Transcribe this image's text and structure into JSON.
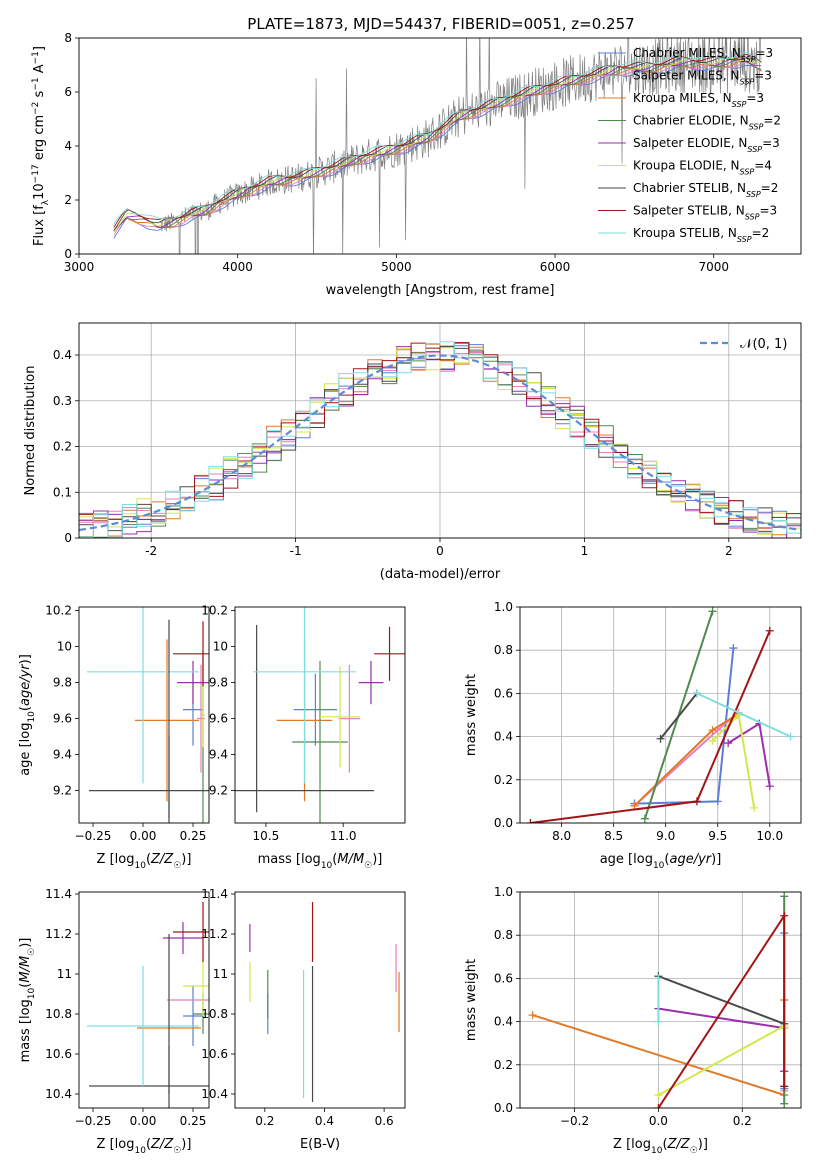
{
  "figure_title": "PLATE=1873, MJD=54437, FIBERID=0051, z=0.257",
  "models": [
    {
      "name": "Chabrier MILES",
      "nssp": "3",
      "color": "#5b7fd6"
    },
    {
      "name": "Salpeter MILES",
      "nssp": "3",
      "color": "#e87fbf"
    },
    {
      "name": "Kroupa MILES",
      "nssp": "3",
      "color": "#e07a28"
    },
    {
      "name": "Chabrier ELODIE",
      "nssp": "2",
      "color": "#4f8a4f"
    },
    {
      "name": "Salpeter ELODIE",
      "nssp": "3",
      "color": "#9b2fae"
    },
    {
      "name": "Kroupa ELODIE",
      "nssp": "4",
      "color": "#d4e64c"
    },
    {
      "name": "Chabrier STELIB",
      "nssp": "2",
      "color": "#4a4a4a"
    },
    {
      "name": "Salpeter STELIB",
      "nssp": "3",
      "color": "#a31515"
    },
    {
      "name": "Kroupa STELIB",
      "nssp": "2",
      "color": "#7fdde0"
    }
  ],
  "data_color": "#808080",
  "chart_data": [
    {
      "id": "spectrum",
      "type": "line",
      "xlabel": "wavelength [Angstrom, rest frame]",
      "ylabel": "Flux [f_λ10^-17 erg cm^-2 s^-1 A^-1]",
      "xlim": [
        3000,
        7550
      ],
      "ylim": [
        0,
        8
      ],
      "xticks": [
        3000,
        4000,
        5000,
        6000,
        7000
      ],
      "yticks": [
        0,
        2,
        4,
        6,
        8
      ],
      "legend_position": "right",
      "continuum": [
        [
          3220,
          0.85
        ],
        [
          3300,
          1.45
        ],
        [
          3400,
          1.3
        ],
        [
          3500,
          1.05
        ],
        [
          3600,
          1.2
        ],
        [
          3700,
          1.45
        ],
        [
          3800,
          1.6
        ],
        [
          3900,
          1.95
        ],
        [
          4000,
          2.2
        ],
        [
          4200,
          2.65
        ],
        [
          4400,
          2.85
        ],
        [
          4600,
          3.2
        ],
        [
          4800,
          3.6
        ],
        [
          5000,
          3.9
        ],
        [
          5200,
          4.3
        ],
        [
          5400,
          5.1
        ],
        [
          5600,
          5.5
        ],
        [
          5800,
          5.9
        ],
        [
          6000,
          6.25
        ],
        [
          6200,
          6.55
        ],
        [
          6400,
          6.85
        ],
        [
          6600,
          6.9
        ],
        [
          6800,
          7.1
        ],
        [
          7000,
          7.05
        ],
        [
          7200,
          7.2
        ],
        [
          7300,
          6.95
        ]
      ]
    },
    {
      "id": "residuals",
      "type": "step",
      "xlabel": "(data-model)/error",
      "ylabel": "Normed distribution",
      "xlim": [
        -2.5,
        2.5
      ],
      "ylim": [
        0,
        0.47
      ],
      "xticks": [
        -2,
        -1,
        0,
        1,
        2
      ],
      "yticks": [
        0,
        0.1,
        0.2,
        0.3,
        0.4
      ],
      "normal_label": "𝒩(0, 1)",
      "legend_position": "top-right"
    },
    {
      "id": "z_age",
      "type": "errorbar",
      "xlabel": "Z [log10(Z/Z☉)]",
      "ylabel": "age  [log10(age/yr)]",
      "xlim": [
        -0.32,
        0.33
      ],
      "ylim": [
        9.02,
        10.22
      ],
      "xticks": [
        -0.25,
        0.0,
        0.25
      ],
      "xticklabels": [
        "−0.25",
        "0.00",
        "0.25"
      ],
      "yticks": [
        9.2,
        9.4,
        9.6,
        9.8,
        10.0,
        10.2
      ],
      "points": [
        {
          "m": 0,
          "x": 0.25,
          "xe": 0.05,
          "y": 9.65,
          "ye": 0.2
        },
        {
          "m": 1,
          "x": 0.29,
          "xe": 0.02,
          "y": 9.6,
          "ye": 0.3
        },
        {
          "m": 2,
          "x": 0.12,
          "xe": 0.16,
          "y": 9.59,
          "ye": 0.45
        },
        {
          "m": 3,
          "x": 0.3,
          "xe": 0.0,
          "y": 9.48,
          "ye": 0.5
        },
        {
          "m": 4,
          "x": 0.25,
          "xe": 0.08,
          "y": 9.8,
          "ye": 0.12
        },
        {
          "m": 5,
          "x": 0.3,
          "xe": 0.01,
          "y": 9.62,
          "ye": 0.18
        },
        {
          "m": 6,
          "x": 0.13,
          "xe": 0.4,
          "y": 9.2,
          "ye": 0.3
        },
        {
          "m": 7,
          "x": 0.3,
          "xe": 0.15,
          "y": 9.96,
          "ye": 0.18
        },
        {
          "m": 8,
          "x": 0.0,
          "xe": 0.28,
          "y": 9.86,
          "ye": 0.62
        },
        {
          "m": 6,
          "x": 0.13,
          "xe": 0.0,
          "y": 9.6,
          "ye": 0.55
        }
      ]
    },
    {
      "id": "mass_age",
      "type": "errorbar",
      "xlabel": "mass [log10(M/M☉)]",
      "ylabel": "",
      "xlim": [
        10.3,
        11.4
      ],
      "ylim": [
        9.02,
        10.22
      ],
      "xticks": [
        10.5,
        11.0
      ],
      "xticklabels": [
        "10.5",
        "11.0"
      ],
      "yticks": [
        9.2,
        9.4,
        9.6,
        9.8,
        10.0,
        10.2
      ],
      "points": [
        {
          "m": 0,
          "x": 10.82,
          "xe": 0.14,
          "y": 9.65,
          "ye": 0.2
        },
        {
          "m": 1,
          "x": 11.04,
          "xe": 0.07,
          "y": 9.6,
          "ye": 0.3
        },
        {
          "m": 2,
          "x": 10.75,
          "xe": 0.18,
          "y": 9.59,
          "ye": 0.45
        },
        {
          "m": 3,
          "x": 10.85,
          "xe": 0.18,
          "y": 9.47,
          "ye": 0.45
        },
        {
          "m": 4,
          "x": 11.18,
          "xe": 0.08,
          "y": 9.8,
          "ye": 0.12
        },
        {
          "m": 5,
          "x": 10.98,
          "xe": 0.13,
          "y": 9.61,
          "ye": 0.28
        },
        {
          "m": 6,
          "x": 10.46,
          "xe": 0.74,
          "y": 9.2,
          "ye": 0.0
        },
        {
          "m": 6,
          "x": 10.44,
          "xe": 0.0,
          "y": 9.6,
          "ye": 0.52
        },
        {
          "m": 7,
          "x": 11.3,
          "xe": 0.1,
          "y": 9.96,
          "ye": 0.15
        },
        {
          "m": 8,
          "x": 10.75,
          "xe": 0.33,
          "y": 9.86,
          "ye": 0.62
        }
      ]
    },
    {
      "id": "age_weight",
      "type": "line",
      "xlabel": "age  [log10(age/yr)]",
      "ylabel": "mass weight",
      "xlim": [
        7.6,
        10.3
      ],
      "ylim": [
        0,
        1
      ],
      "xticks": [
        8.0,
        8.5,
        9.0,
        9.5,
        10.0
      ],
      "xticklabels": [
        "8.0",
        "8.5",
        "9.0",
        "9.5",
        "10.0"
      ],
      "yticks": [
        0,
        0.2,
        0.4,
        0.6,
        0.8,
        1.0
      ],
      "yticklabels": [
        "0.0",
        "0.2",
        "0.4",
        "0.6",
        "0.8",
        "1.0"
      ],
      "series": [
        {
          "m": 0,
          "x": [
            8.7,
            9.5,
            9.65
          ],
          "y": [
            0.09,
            0.1,
            0.81
          ]
        },
        {
          "m": 1,
          "x": [
            8.7,
            9.5,
            9.7
          ],
          "y": [
            0.08,
            0.43,
            0.51
          ]
        },
        {
          "m": 2,
          "x": [
            8.7,
            9.45,
            9.68
          ],
          "y": [
            0.08,
            0.43,
            0.5
          ]
        },
        {
          "m": 3,
          "x": [
            8.8,
            9.45
          ],
          "y": [
            0.02,
            0.98
          ]
        },
        {
          "m": 4,
          "x": [
            9.6,
            9.9,
            10.0
          ],
          "y": [
            0.37,
            0.46,
            0.17
          ]
        },
        {
          "m": 5,
          "x": [
            9.45,
            9.7,
            9.85
          ],
          "y": [
            0.38,
            0.5,
            0.07
          ]
        },
        {
          "m": 6,
          "x": [
            8.95,
            9.3
          ],
          "y": [
            0.39,
            0.6
          ]
        },
        {
          "m": 7,
          "x": [
            7.7,
            9.3,
            10.0
          ],
          "y": [
            0.0,
            0.1,
            0.89
          ]
        },
        {
          "m": 8,
          "x": [
            9.3,
            10.2
          ],
          "y": [
            0.6,
            0.4
          ]
        }
      ]
    },
    {
      "id": "z_mass",
      "type": "errorbar",
      "xlabel": "Z [log10(Z/Z☉)]",
      "ylabel": "mass [log10(M/M☉)]",
      "xlim": [
        -0.32,
        0.33
      ],
      "ylim": [
        10.33,
        11.41
      ],
      "xticks": [
        -0.25,
        0.0,
        0.25
      ],
      "xticklabels": [
        "−0.25",
        "0.00",
        "0.25"
      ],
      "yticks": [
        10.4,
        10.6,
        10.8,
        11.0,
        11.2,
        11.4
      ],
      "points": [
        {
          "m": 0,
          "x": 0.25,
          "xe": 0.05,
          "y": 10.79,
          "ye": 0.15
        },
        {
          "m": 1,
          "x": 0.3,
          "xe": 0.18,
          "y": 10.87,
          "ye": 0.0
        },
        {
          "m": 2,
          "x": 0.13,
          "xe": 0.16,
          "y": 10.73,
          "ye": 0.0
        },
        {
          "m": 3,
          "x": 0.3,
          "xe": 0.05,
          "y": 10.8,
          "ye": 0.1
        },
        {
          "m": 4,
          "x": 0.2,
          "xe": 0.1,
          "y": 11.18,
          "ye": 0.08
        },
        {
          "m": 5,
          "x": 0.3,
          "xe": 0.1,
          "y": 10.94,
          "ye": 0.15
        },
        {
          "m": 6,
          "x": 0.13,
          "xe": 0.4,
          "y": 10.44,
          "ye": 0.2
        },
        {
          "m": 7,
          "x": 0.3,
          "xe": 0.15,
          "y": 11.21,
          "ye": 0.15
        },
        {
          "m": 8,
          "x": 0.0,
          "xe": 0.28,
          "y": 10.74,
          "ye": 0.3
        },
        {
          "m": 6,
          "x": 0.13,
          "xe": 0.0,
          "y": 10.8,
          "ye": 0.4
        }
      ]
    },
    {
      "id": "ebv_mass",
      "type": "errorbar",
      "xlabel": "E(B-V)",
      "ylabel": "",
      "xlim": [
        0.1,
        0.67
      ],
      "ylim": [
        10.33,
        11.41
      ],
      "xticks": [
        0.2,
        0.4,
        0.6
      ],
      "xticklabels": [
        "0.2",
        "0.4",
        "0.6"
      ],
      "yticks": [
        10.4,
        10.6,
        10.8,
        11.0,
        11.2,
        11.4
      ],
      "points": [
        {
          "m": 0,
          "x": 0.21,
          "xe": 0.0,
          "y": 10.8,
          "ye": 0.1
        },
        {
          "m": 1,
          "x": 0.64,
          "xe": 0.0,
          "y": 11.03,
          "ye": 0.12
        },
        {
          "m": 2,
          "x": 0.65,
          "xe": 0.0,
          "y": 10.86,
          "ye": 0.15
        },
        {
          "m": 3,
          "x": 0.21,
          "xe": 0.0,
          "y": 10.9,
          "ye": 0.12
        },
        {
          "m": 4,
          "x": 0.15,
          "xe": 0.0,
          "y": 11.18,
          "ye": 0.07
        },
        {
          "m": 5,
          "x": 0.15,
          "xe": 0.0,
          "y": 10.96,
          "ye": 0.1
        },
        {
          "m": 6,
          "x": 0.36,
          "xe": 0.0,
          "y": 10.7,
          "ye": 0.34
        },
        {
          "m": 7,
          "x": 0.36,
          "xe": 0.0,
          "y": 11.21,
          "ye": 0.15
        },
        {
          "m": 8,
          "x": 0.33,
          "xe": 0.0,
          "y": 10.7,
          "ye": 0.32
        }
      ]
    },
    {
      "id": "z_weight",
      "type": "line",
      "xlabel": "Z [log10(Z/Z☉)]",
      "ylabel": "mass weight",
      "xlim": [
        -0.33,
        0.34
      ],
      "ylim": [
        0,
        1
      ],
      "xticks": [
        -0.2,
        0.0,
        0.2
      ],
      "xticklabels": [
        "−0.2",
        "0.0",
        "0.2"
      ],
      "yticks": [
        0,
        0.2,
        0.4,
        0.6,
        0.8,
        1.0
      ],
      "yticklabels": [
        "0.0",
        "0.2",
        "0.4",
        "0.6",
        "0.8",
        "1.0"
      ],
      "series": [
        {
          "m": 0,
          "x": [
            0.3,
            0.3,
            0.3
          ],
          "y": [
            0.09,
            0.1,
            0.81
          ]
        },
        {
          "m": 1,
          "x": [
            0.3,
            0.3,
            0.3
          ],
          "y": [
            0.08,
            0.5,
            0.17
          ]
        },
        {
          "m": 2,
          "x": [
            -0.3,
            0.3,
            0.3
          ],
          "y": [
            0.43,
            0.06,
            0.5
          ]
        },
        {
          "m": 3,
          "x": [
            0.3,
            0.3
          ],
          "y": [
            0.02,
            0.98
          ]
        },
        {
          "m": 4,
          "x": [
            0.0,
            0.3,
            0.3
          ],
          "y": [
            0.46,
            0.37,
            0.17
          ]
        },
        {
          "m": 5,
          "x": [
            0.0,
            0.3,
            0.3
          ],
          "y": [
            0.06,
            0.38,
            0.37
          ]
        },
        {
          "m": 6,
          "x": [
            0.0,
            0.3
          ],
          "y": [
            0.61,
            0.39
          ]
        },
        {
          "m": 7,
          "x": [
            0.0,
            0.3,
            0.3
          ],
          "y": [
            0.0,
            0.89,
            0.1
          ]
        },
        {
          "m": 8,
          "x": [
            0.0,
            0.0
          ],
          "y": [
            0.6,
            0.4
          ]
        }
      ]
    }
  ]
}
